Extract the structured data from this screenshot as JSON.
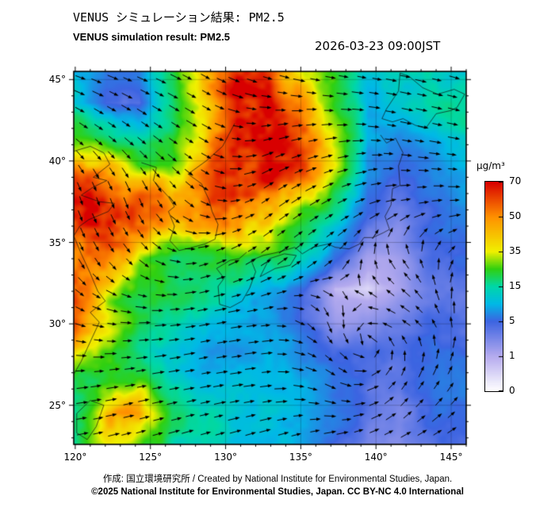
{
  "header": {
    "title_jp": "VENUS シミュレーション結果: PM2.5",
    "title_en": "VENUS simulation result: PM2.5",
    "timestamp": "2026-03-23 09:00JST"
  },
  "map": {
    "lon_tick_labels": [
      "120°",
      "125°",
      "130°",
      "135°",
      "140°",
      "145°"
    ],
    "lat_tick_labels": [
      "45°",
      "40°",
      "35°",
      "30°",
      "25°"
    ]
  },
  "colorbar": {
    "unit": "µg/m³",
    "tick_labels": [
      "70",
      "50",
      "35",
      "15",
      "5",
      "1",
      "0"
    ]
  },
  "footer": {
    "credit": "作成: 国立環境研究所 / Created by National Institute for Environmental Studies, Japan.",
    "license": "©2025 National Institute for Environmental Studies, Japan. CC BY-NC 4.0 International"
  },
  "chart_data": {
    "type": "heatmap",
    "title": "VENUS simulation result: PM2.5",
    "variable": "PM2.5 surface concentration",
    "unit": "µg/m³",
    "datetime": "2026-03-23 09:00JST",
    "lon_range": [
      119.9,
      146.0
    ],
    "lat_range": [
      22.6,
      45.5
    ],
    "colorbar_ticks": [
      70,
      50,
      35,
      15,
      5,
      1,
      0
    ],
    "colorscale": {
      "breakpoints": [
        0,
        1,
        5,
        10,
        15,
        25,
        35,
        50,
        70
      ],
      "colors": [
        "#ffffff",
        "#b4aaee",
        "#3c64e1",
        "#00b9e6",
        "#00d7a8",
        "#30d010",
        "#f0f000",
        "#ff9000",
        "#d80000"
      ]
    },
    "grid_lon": [
      119.9,
      122.1,
      124.2,
      126.4,
      128.6,
      130.8,
      132.9,
      135.1,
      137.3,
      139.4,
      141.6,
      143.8,
      146.0
    ],
    "grid_lat": [
      45.5,
      43.6,
      41.7,
      39.8,
      37.9,
      36.0,
      34.1,
      32.2,
      30.3,
      28.4,
      26.5,
      24.5,
      22.6
    ],
    "values": [
      [
        15,
        6,
        6,
        18,
        40,
        62,
        55,
        35,
        22,
        12,
        14,
        16,
        14
      ],
      [
        12,
        5,
        4,
        15,
        35,
        60,
        62,
        45,
        22,
        9,
        10,
        14,
        15
      ],
      [
        25,
        18,
        14,
        18,
        38,
        62,
        65,
        52,
        28,
        8,
        7,
        9,
        12
      ],
      [
        55,
        45,
        25,
        25,
        45,
        65,
        68,
        55,
        30,
        7,
        5,
        7,
        10
      ],
      [
        68,
        62,
        55,
        38,
        55,
        68,
        62,
        45,
        20,
        6,
        4,
        6,
        8
      ],
      [
        70,
        68,
        58,
        45,
        50,
        55,
        40,
        20,
        10,
        4,
        3,
        5,
        6
      ],
      [
        65,
        55,
        32,
        24,
        22,
        26,
        22,
        14,
        5,
        1.5,
        2,
        4,
        5
      ],
      [
        60,
        42,
        24,
        20,
        18,
        16,
        12,
        6,
        1,
        0.5,
        1.5,
        3,
        4
      ],
      [
        52,
        32,
        20,
        16,
        13,
        10,
        8,
        5,
        2,
        2,
        3,
        4,
        4
      ],
      [
        35,
        24,
        16,
        11,
        9,
        8,
        8,
        6,
        5,
        4,
        4,
        5,
        5
      ],
      [
        22,
        20,
        24,
        14,
        11,
        10,
        9,
        8,
        6,
        5,
        4,
        5,
        6
      ],
      [
        18,
        40,
        48,
        18,
        13,
        11,
        10,
        8,
        6,
        4,
        3,
        5,
        6
      ],
      [
        22,
        32,
        28,
        16,
        13,
        11,
        10,
        8,
        5,
        3,
        3,
        4,
        5
      ]
    ],
    "wind_overlay": {
      "type": "vector-arrows",
      "grid_lon": [
        119.9,
        124.25,
        128.6,
        132.95,
        137.3,
        141.65,
        146.0
      ],
      "grid_lat": [
        45.5,
        41.7,
        37.9,
        34.1,
        30.3,
        26.5,
        22.6
      ],
      "u": [
        [
          0.9,
          1.0,
          0.9,
          0.9,
          1.0,
          1.0,
          1.0
        ],
        [
          0.7,
          0.8,
          0.7,
          0.8,
          0.9,
          1.0,
          1.0
        ],
        [
          0.3,
          0.3,
          0.5,
          0.7,
          0.8,
          0.9,
          0.9
        ],
        [
          0.4,
          0.5,
          0.6,
          0.7,
          0.4,
          -0.4,
          0.4
        ],
        [
          0.8,
          0.9,
          1.0,
          0.9,
          0.1,
          -0.9,
          0.1
        ],
        [
          1.0,
          1.1,
          1.1,
          1.0,
          0.9,
          0.6,
          0.5
        ],
        [
          1.0,
          1.0,
          1.0,
          0.9,
          0.9,
          0.9,
          0.8
        ]
      ],
      "v": [
        [
          -0.3,
          -0.4,
          -0.5,
          -0.3,
          -0.2,
          -0.2,
          -0.3
        ],
        [
          -0.5,
          -0.6,
          -0.4,
          0.2,
          0.1,
          -0.2,
          -0.2
        ],
        [
          -0.9,
          -0.8,
          -0.3,
          0.5,
          0.4,
          0.1,
          0.0
        ],
        [
          -0.8,
          -0.5,
          0.2,
          0.5,
          0.4,
          0.6,
          0.3
        ],
        [
          -0.3,
          0.0,
          0.2,
          0.1,
          -0.7,
          0.5,
          0.7
        ],
        [
          0.1,
          0.2,
          0.2,
          0.1,
          -0.5,
          0.9,
          0.8
        ],
        [
          0.2,
          0.3,
          0.3,
          0.3,
          0.3,
          0.4,
          0.4
        ]
      ]
    }
  }
}
